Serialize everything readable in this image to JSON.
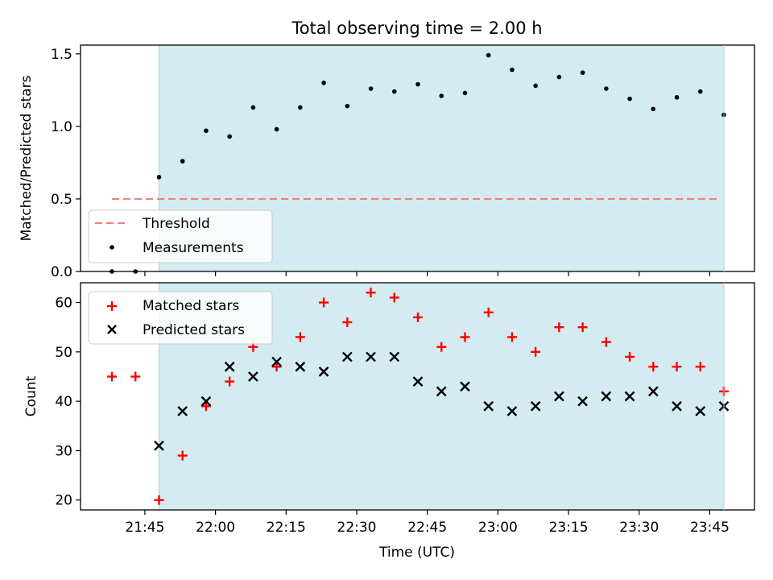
{
  "chart_data": [
    {
      "type": "scatter",
      "title": "Total observing time = 2.00 h",
      "ylabel": "Matched/Predicted stars",
      "xlabel": "",
      "ylim": [
        0,
        1.56
      ],
      "yticks": [
        "0.0",
        "0.5",
        "1.0",
        "1.5"
      ],
      "x": [
        "21:38",
        "21:43",
        "21:48",
        "21:53",
        "21:58",
        "22:03",
        "22:08",
        "22:13",
        "22:18",
        "22:23",
        "22:28",
        "22:33",
        "22:38",
        "22:43",
        "22:48",
        "22:53",
        "22:58",
        "23:03",
        "23:08",
        "23:13",
        "23:18",
        "23:23",
        "23:28",
        "23:33",
        "23:38",
        "23:43",
        "23:48"
      ],
      "shaded_span": [
        "21:48",
        "23:48"
      ],
      "threshold": {
        "name": "Threshold",
        "value": 0.5,
        "start": "21:38",
        "end": "23:48",
        "color": "#f08080"
      },
      "series": [
        {
          "name": "Measurements",
          "marker": "dot",
          "color": "#000000",
          "values": [
            0.0,
            0.0,
            0.65,
            0.76,
            0.97,
            0.93,
            1.13,
            0.98,
            1.13,
            1.3,
            1.14,
            1.26,
            1.24,
            1.29,
            1.21,
            1.23,
            1.49,
            1.39,
            1.28,
            1.34,
            1.37,
            1.26,
            1.19,
            1.12,
            1.2,
            1.24,
            1.08
          ]
        }
      ],
      "legend": "lower-left",
      "shade_color": "#add8e6"
    },
    {
      "type": "scatter",
      "title": "",
      "ylabel": "Count",
      "xlabel": "Time (UTC)",
      "ylim": [
        18,
        64
      ],
      "yticks": [
        "20",
        "30",
        "40",
        "50",
        "60"
      ],
      "xticks": [
        "21:45",
        "22:00",
        "22:15",
        "22:30",
        "22:45",
        "23:00",
        "23:15",
        "23:30",
        "23:45"
      ],
      "x": [
        "21:38",
        "21:43",
        "21:48",
        "21:53",
        "21:58",
        "22:03",
        "22:08",
        "22:13",
        "22:18",
        "22:23",
        "22:28",
        "22:33",
        "22:38",
        "22:43",
        "22:48",
        "22:53",
        "22:58",
        "23:03",
        "23:08",
        "23:13",
        "23:18",
        "23:23",
        "23:28",
        "23:33",
        "23:38",
        "23:43",
        "23:48"
      ],
      "shaded_span": [
        "21:48",
        "23:48"
      ],
      "series": [
        {
          "name": "Matched stars",
          "marker": "plus",
          "color": "#ff0000",
          "values": [
            45,
            45,
            20,
            29,
            39,
            44,
            51,
            47,
            53,
            60,
            56,
            62,
            61,
            57,
            51,
            53,
            58,
            53,
            50,
            55,
            55,
            52,
            49,
            47,
            47,
            47,
            42
          ]
        },
        {
          "name": "Predicted stars",
          "marker": "x",
          "color": "#000000",
          "values": [
            null,
            null,
            31,
            38,
            40,
            47,
            45,
            48,
            47,
            46,
            49,
            49,
            49,
            44,
            42,
            43,
            39,
            38,
            39,
            41,
            40,
            41,
            41,
            42,
            39,
            38,
            39
          ]
        }
      ],
      "legend": "top-left",
      "shade_color": "#add8e6"
    }
  ]
}
